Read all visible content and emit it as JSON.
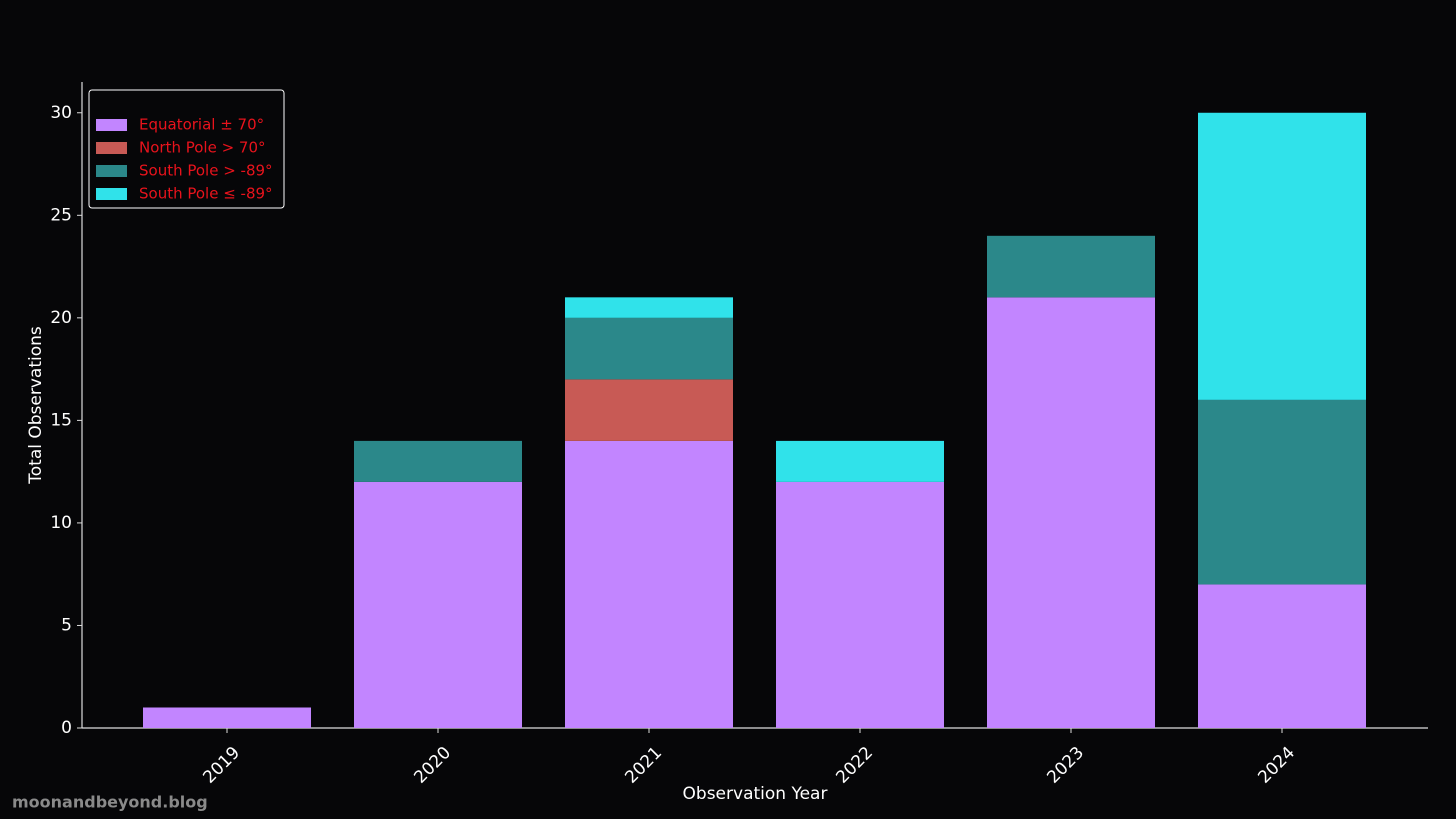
{
  "chart_data": {
    "type": "stacked_bar",
    "x_label": "Observation Year",
    "y_label": "Total Observations",
    "categories": [
      "2019",
      "2020",
      "2021",
      "2022",
      "2023",
      "2024"
    ],
    "series": [
      {
        "name": "Equatorial ± 70°",
        "color": "#c285ff",
        "values": [
          1,
          12,
          14,
          12,
          21,
          7
        ]
      },
      {
        "name": "North Pole > 70°",
        "color": "#c85a55",
        "values": [
          0,
          0,
          3,
          0,
          0,
          0
        ]
      },
      {
        "name": "South Pole > -89°",
        "color": "#2b888a",
        "values": [
          0,
          2,
          3,
          0,
          3,
          9
        ]
      },
      {
        "name": "South Pole ≤ -89°",
        "color": "#30e2ea",
        "values": [
          0,
          0,
          1,
          2,
          0,
          14
        ]
      }
    ],
    "ylim": [
      0,
      31.5
    ],
    "yticks": [
      0,
      5,
      10,
      15,
      20,
      25,
      30
    ],
    "legend": "upper-left",
    "watermark": "moonandbeyond.blog"
  }
}
